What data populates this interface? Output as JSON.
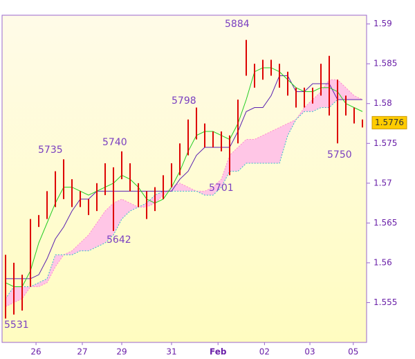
{
  "chart_data": {
    "type": "candlestick",
    "xlim": [
      -0.42,
      43.5
    ],
    "xticks": [
      {
        "value": 3.67,
        "label": "26"
      },
      {
        "value": 9.25,
        "label": "27"
      },
      {
        "value": 14,
        "label": "29"
      },
      {
        "value": 20,
        "label": "31"
      },
      {
        "value": 25.6,
        "label": "Feb"
      },
      {
        "value": 31.2,
        "label": "02"
      },
      {
        "value": 36.67,
        "label": "03"
      },
      {
        "value": 41.9,
        "label": "05"
      }
    ],
    "ylim": [
      1.55,
      1.5911
    ],
    "yticks": [
      1.555,
      1.56,
      1.565,
      1.57,
      1.575,
      1.58,
      1.585,
      1.59
    ],
    "high": [
      1.561,
      1.56,
      1.5585,
      1.5655,
      1.566,
      1.569,
      1.5715,
      1.573,
      1.5705,
      1.569,
      1.568,
      1.57,
      1.5725,
      1.572,
      1.574,
      1.5725,
      1.57,
      1.569,
      1.5695,
      1.571,
      1.5725,
      1.575,
      1.578,
      1.5795,
      1.5775,
      1.5765,
      1.5765,
      1.576,
      1.5805,
      1.588,
      1.585,
      1.5855,
      1.5855,
      1.585,
      1.584,
      1.582,
      1.582,
      1.582,
      1.585,
      1.586,
      1.583,
      1.581,
      1.5795,
      1.578
    ],
    "low": [
      1.553,
      1.5535,
      1.554,
      1.557,
      1.5645,
      1.5655,
      1.567,
      1.568,
      1.567,
      1.567,
      1.566,
      1.5665,
      1.5685,
      1.564,
      1.5705,
      1.569,
      1.567,
      1.5655,
      1.5665,
      1.568,
      1.5695,
      1.571,
      1.5735,
      1.5755,
      1.5745,
      1.5745,
      1.574,
      1.571,
      1.575,
      1.5835,
      1.582,
      1.583,
      1.5835,
      1.582,
      1.581,
      1.5795,
      1.5795,
      1.58,
      1.581,
      1.5785,
      1.575,
      1.5785,
      1.5775,
      1.577
    ],
    "tenkan": [
      1.5575,
      1.557,
      1.557,
      1.559,
      1.5625,
      1.565,
      1.5675,
      1.5695,
      1.5695,
      1.569,
      1.5685,
      1.569,
      1.5695,
      1.57,
      1.571,
      1.5705,
      1.5695,
      1.568,
      1.5675,
      1.568,
      1.5695,
      1.5715,
      1.574,
      1.576,
      1.5765,
      1.5765,
      1.576,
      1.5755,
      1.5775,
      1.5805,
      1.584,
      1.5845,
      1.5845,
      1.584,
      1.583,
      1.582,
      1.5815,
      1.5815,
      1.582,
      1.582,
      1.5815,
      1.58,
      1.5795,
      1.579
    ],
    "kijun": [
      1.558,
      1.558,
      1.558,
      1.558,
      1.5585,
      1.5605,
      1.563,
      1.5645,
      1.5665,
      1.568,
      1.568,
      1.569,
      1.569,
      1.569,
      1.569,
      1.569,
      1.569,
      1.569,
      1.569,
      1.569,
      1.569,
      1.5705,
      1.5715,
      1.5735,
      1.5745,
      1.5745,
      1.5745,
      1.5745,
      1.5765,
      1.579,
      1.5795,
      1.5795,
      1.581,
      1.5835,
      1.5835,
      1.5815,
      1.5815,
      1.5825,
      1.5825,
      1.5825,
      1.5805,
      1.5805,
      1.5805,
      1.5805
    ],
    "span_a": [
      1.5545,
      1.555,
      1.5555,
      1.557,
      1.557,
      1.5575,
      1.5595,
      1.561,
      1.5615,
      1.5625,
      1.5635,
      1.565,
      1.5665,
      1.5675,
      1.568,
      1.5675,
      1.567,
      1.567,
      1.5675,
      1.5685,
      1.5695,
      1.57,
      1.5695,
      1.569,
      1.569,
      1.5695,
      1.5705,
      1.5735,
      1.5745,
      1.5755,
      1.5755,
      1.576,
      1.5765,
      1.577,
      1.5775,
      1.578,
      1.5795,
      1.5805,
      1.5815,
      1.583,
      1.583,
      1.582,
      1.581,
      1.5805
    ],
    "span_b": [
      1.5555,
      1.557,
      1.557,
      1.557,
      1.5575,
      1.558,
      1.561,
      1.561,
      1.561,
      1.5615,
      1.5615,
      1.562,
      1.5625,
      1.5635,
      1.5655,
      1.5665,
      1.567,
      1.5675,
      1.5685,
      1.569,
      1.569,
      1.569,
      1.569,
      1.569,
      1.5685,
      1.5685,
      1.5695,
      1.5715,
      1.5715,
      1.5725,
      1.5725,
      1.5725,
      1.5725,
      1.5725,
      1.576,
      1.578,
      1.579,
      1.579,
      1.5795,
      1.5795,
      1.5805,
      1.5805,
      1.5805,
      1.5805
    ],
    "colors": {
      "bars": "#dd0000",
      "tenkan": "#22cc22",
      "kijun": "#5a20b0",
      "cloud": "#ffc6e6",
      "span_a": "#ff88cc",
      "span_b": "#33bbcc"
    },
    "annotations": [
      "5531",
      "5735",
      "5740",
      "5642",
      "5798",
      "5701",
      "5884",
      "5750"
    ],
    "last_price": 1.5776
  }
}
